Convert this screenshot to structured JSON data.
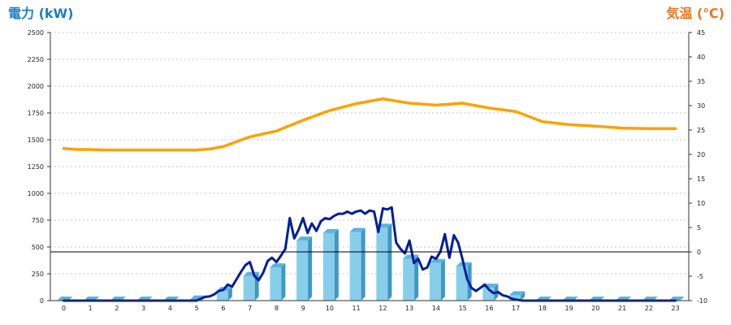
{
  "chart_data": {
    "type": "bar",
    "left_axis": {
      "title": "電力 (kW)",
      "min": 0,
      "max": 2500,
      "ticks": [
        0,
        250,
        500,
        750,
        1000,
        1250,
        1500,
        1750,
        2000,
        2250,
        2500
      ],
      "color": "#1a7fc1"
    },
    "right_axis": {
      "title": "気温 (℃)",
      "min": -10,
      "max": 45,
      "ticks": [
        -10,
        -5,
        0,
        5,
        10,
        15,
        20,
        25,
        30,
        35,
        40,
        45
      ],
      "color": "#e87722"
    },
    "categories": [
      "0",
      "1",
      "2",
      "3",
      "4",
      "5",
      "6",
      "7",
      "8",
      "9",
      "10",
      "11",
      "12",
      "13",
      "14",
      "15",
      "16",
      "17",
      "18",
      "19",
      "20",
      "21",
      "22",
      "23"
    ],
    "grid": "dashed-horizontal",
    "series": [
      {
        "type": "bar3d",
        "axis": "left",
        "color": "#87ceeb",
        "values": [
          0,
          0,
          0,
          0,
          0,
          10,
          90,
          230,
          310,
          560,
          630,
          640,
          680,
          390,
          350,
          320,
          120,
          50,
          0,
          0,
          0,
          0,
          0,
          0
        ]
      },
      {
        "type": "line",
        "axis": "left",
        "color": "#001e96",
        "x": [
          0,
          0.5,
          1,
          1.5,
          2,
          2.5,
          3,
          3.5,
          4,
          4.5,
          5,
          5.17,
          5.33,
          5.5,
          5.67,
          5.83,
          6,
          6.17,
          6.33,
          6.5,
          6.67,
          6.83,
          7,
          7.17,
          7.33,
          7.5,
          7.67,
          7.83,
          8,
          8.17,
          8.33,
          8.5,
          8.67,
          8.83,
          9,
          9.17,
          9.33,
          9.5,
          9.67,
          9.83,
          10,
          10.17,
          10.33,
          10.5,
          10.67,
          10.83,
          11,
          11.17,
          11.33,
          11.5,
          11.67,
          11.83,
          12,
          12.17,
          12.33,
          12.5,
          12.67,
          12.83,
          13,
          13.17,
          13.33,
          13.5,
          13.67,
          13.83,
          14,
          14.17,
          14.33,
          14.5,
          14.67,
          14.83,
          15,
          15.17,
          15.33,
          15.5,
          15.67,
          15.83,
          16,
          16.17,
          16.33,
          16.5,
          16.67,
          16.83,
          17,
          17.25,
          17.5,
          18,
          19,
          20,
          21,
          22,
          23
        ],
        "values": [
          0,
          0,
          0,
          0,
          0,
          0,
          0,
          0,
          0,
          0,
          0,
          20,
          35,
          40,
          60,
          90,
          100,
          150,
          130,
          200,
          270,
          330,
          360,
          230,
          190,
          260,
          370,
          400,
          360,
          420,
          480,
          770,
          580,
          660,
          770,
          630,
          720,
          650,
          740,
          770,
          760,
          790,
          810,
          810,
          830,
          810,
          830,
          840,
          810,
          840,
          830,
          640,
          860,
          850,
          870,
          540,
          480,
          440,
          560,
          350,
          390,
          290,
          310,
          410,
          390,
          460,
          620,
          400,
          610,
          540,
          380,
          200,
          120,
          90,
          120,
          150,
          100,
          70,
          80,
          50,
          40,
          20,
          10,
          0,
          0,
          0,
          0,
          0,
          0,
          0,
          0
        ]
      },
      {
        "type": "line",
        "axis": "right",
        "color": "#ffa000",
        "x": [
          0,
          0.5,
          1,
          1.5,
          2,
          3,
          4,
          5,
          5.5,
          6,
          7,
          8,
          9,
          10,
          11,
          12,
          13,
          14,
          15,
          16,
          17,
          18,
          19,
          20,
          21,
          22,
          23
        ],
        "values": [
          21.2,
          21.0,
          21.0,
          20.9,
          20.9,
          20.9,
          20.9,
          20.9,
          21.1,
          21.6,
          23.6,
          24.8,
          27.0,
          29.0,
          30.4,
          31.4,
          30.5,
          30.1,
          30.5,
          29.5,
          28.8,
          26.7,
          26.1,
          25.8,
          25.4,
          25.3,
          25.3
        ]
      }
    ]
  }
}
